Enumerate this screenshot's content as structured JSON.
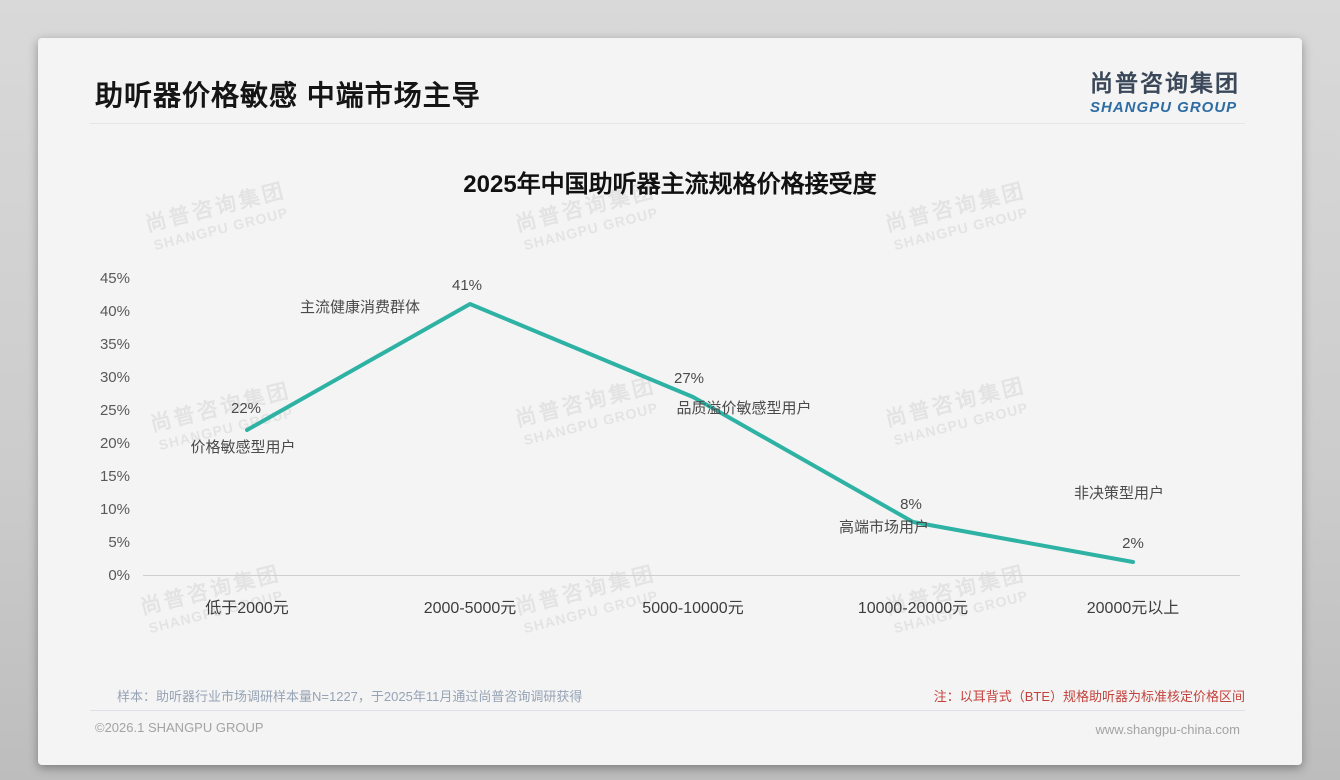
{
  "page": {
    "header": {
      "title": "助听器价格敏感 中端市场主导"
    },
    "logo": {
      "cn": "尚普咨询集团",
      "en": "SHANGPU GROUP"
    },
    "watermark": {
      "cn": "尚普咨询集团",
      "en": "SHANGPU GROUP"
    },
    "footer": {
      "sample_note": "样本：助听器行业市场调研样本量N=1227，于2025年11月通过尚普咨询调研获得",
      "price_note": "注：以耳背式（BTE）规格助听器为标准核定价格区间",
      "copyright": "©2026.1 SHANGPU GROUP",
      "website": "www.shangpu-china.com"
    },
    "colors": {
      "accent_teal": "#2eb2a4",
      "logo_cn": "#3b4859",
      "logo_en": "#2e6da4",
      "note_red": "#c4423c",
      "card_bg": "#f4f4f4"
    }
  },
  "chart_data": {
    "type": "line",
    "title": "2025年中国助听器主流规格价格接受度",
    "categories": [
      "低于2000元",
      "2000-5000元",
      "5000-10000元",
      "10000-20000元",
      "20000元以上"
    ],
    "values": [
      22,
      41,
      27,
      8,
      2
    ],
    "point_labels": [
      "22%",
      "41%",
      "27%",
      "8%",
      "2%"
    ],
    "annotations": [
      "价格敏感型用户",
      "主流健康消费群体",
      "品质溢价敏感型用户",
      "高端市场用户",
      "非决策型用户"
    ],
    "y_ticks": [
      "45%",
      "40%",
      "35%",
      "30%",
      "25%",
      "20%",
      "15%",
      "10%",
      "5%",
      "0%"
    ],
    "ylim": [
      0,
      45
    ],
    "xlabel": "",
    "ylabel": "",
    "grid": false,
    "legend": false,
    "line_color": "#2eb2a4"
  }
}
